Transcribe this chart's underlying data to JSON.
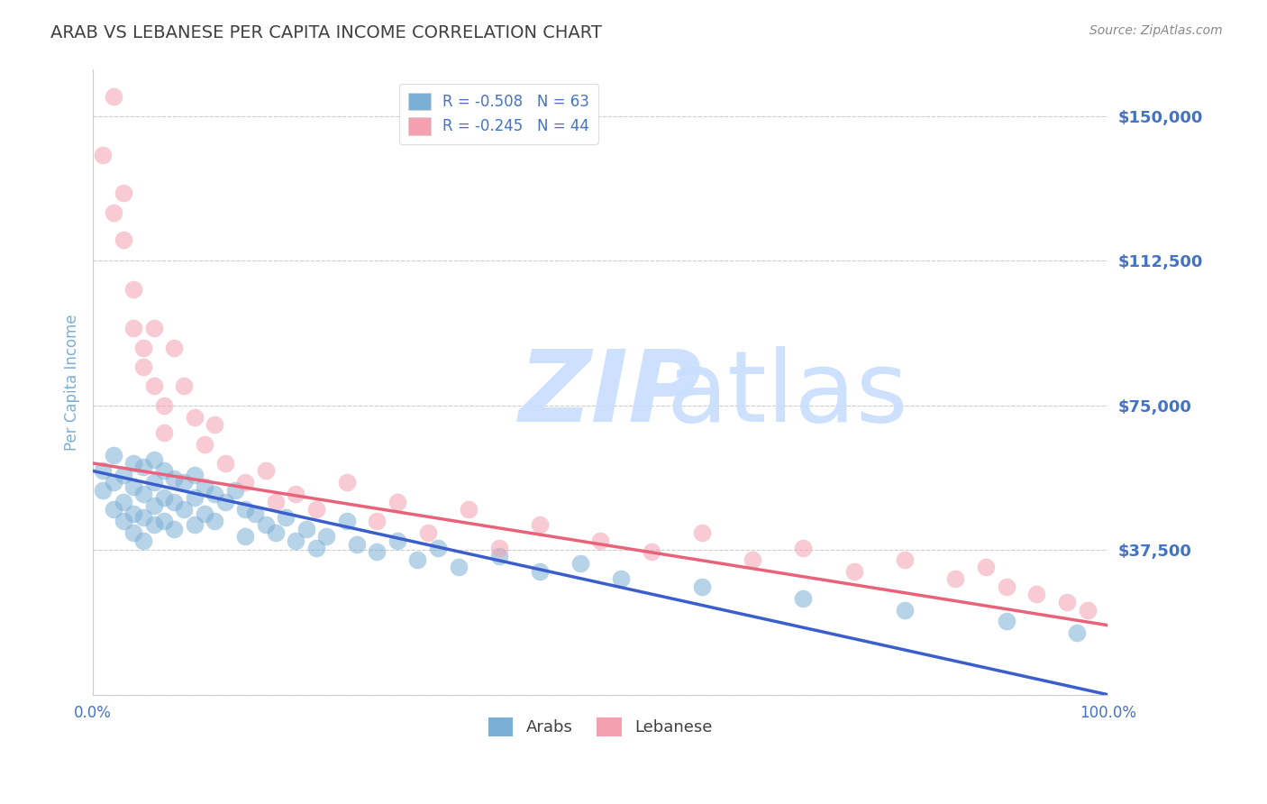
{
  "title": "ARAB VS LEBANESE PER CAPITA INCOME CORRELATION CHART",
  "source_text": "Source: ZipAtlas.com",
  "ylabel": "Per Capita Income",
  "xlim": [
    0.0,
    1.0
  ],
  "ylim": [
    0,
    162000
  ],
  "yticks": [
    0,
    37500,
    75000,
    112500,
    150000
  ],
  "ytick_labels": [
    "",
    "$37,500",
    "$75,000",
    "$112,500",
    "$150,000"
  ],
  "xticks": [
    0.0,
    0.25,
    0.5,
    0.75,
    1.0
  ],
  "xtick_labels": [
    "0.0%",
    "",
    "",
    "",
    "100.0%"
  ],
  "arab_R": -0.508,
  "arab_N": 63,
  "lebanese_R": -0.245,
  "lebanese_N": 44,
  "arab_color": "#7BAFD4",
  "lebanese_color": "#F4A0B0",
  "arab_line_color": "#3A5FCD",
  "lebanese_line_color": "#E8637A",
  "title_color": "#404040",
  "axis_label_color": "#7BAFD4",
  "tick_label_color": "#4472C4",
  "source_color": "#888888",
  "grid_color": "#CCCCCC",
  "background_color": "#FFFFFF",
  "arab_scatter_x": [
    0.01,
    0.01,
    0.02,
    0.02,
    0.02,
    0.03,
    0.03,
    0.03,
    0.04,
    0.04,
    0.04,
    0.04,
    0.05,
    0.05,
    0.05,
    0.05,
    0.06,
    0.06,
    0.06,
    0.06,
    0.07,
    0.07,
    0.07,
    0.08,
    0.08,
    0.08,
    0.09,
    0.09,
    0.1,
    0.1,
    0.1,
    0.11,
    0.11,
    0.12,
    0.12,
    0.13,
    0.14,
    0.15,
    0.15,
    0.16,
    0.17,
    0.18,
    0.19,
    0.2,
    0.21,
    0.22,
    0.23,
    0.25,
    0.26,
    0.28,
    0.3,
    0.32,
    0.34,
    0.36,
    0.4,
    0.44,
    0.48,
    0.52,
    0.6,
    0.7,
    0.8,
    0.9,
    0.97
  ],
  "arab_scatter_y": [
    58000,
    53000,
    62000,
    55000,
    48000,
    57000,
    50000,
    45000,
    60000,
    54000,
    47000,
    42000,
    59000,
    52000,
    46000,
    40000,
    61000,
    55000,
    49000,
    44000,
    58000,
    51000,
    45000,
    56000,
    50000,
    43000,
    55000,
    48000,
    57000,
    51000,
    44000,
    54000,
    47000,
    52000,
    45000,
    50000,
    53000,
    48000,
    41000,
    47000,
    44000,
    42000,
    46000,
    40000,
    43000,
    38000,
    41000,
    45000,
    39000,
    37000,
    40000,
    35000,
    38000,
    33000,
    36000,
    32000,
    34000,
    30000,
    28000,
    25000,
    22000,
    19000,
    16000
  ],
  "lebanese_scatter_x": [
    0.01,
    0.02,
    0.02,
    0.03,
    0.03,
    0.04,
    0.04,
    0.05,
    0.05,
    0.06,
    0.06,
    0.07,
    0.07,
    0.08,
    0.09,
    0.1,
    0.11,
    0.12,
    0.13,
    0.15,
    0.17,
    0.18,
    0.2,
    0.22,
    0.25,
    0.28,
    0.3,
    0.33,
    0.37,
    0.4,
    0.44,
    0.5,
    0.55,
    0.6,
    0.65,
    0.7,
    0.75,
    0.8,
    0.85,
    0.88,
    0.9,
    0.93,
    0.96,
    0.98
  ],
  "lebanese_scatter_y": [
    140000,
    155000,
    125000,
    130000,
    118000,
    105000,
    95000,
    90000,
    85000,
    80000,
    95000,
    75000,
    68000,
    90000,
    80000,
    72000,
    65000,
    70000,
    60000,
    55000,
    58000,
    50000,
    52000,
    48000,
    55000,
    45000,
    50000,
    42000,
    48000,
    38000,
    44000,
    40000,
    37000,
    42000,
    35000,
    38000,
    32000,
    35000,
    30000,
    33000,
    28000,
    26000,
    24000,
    22000
  ]
}
